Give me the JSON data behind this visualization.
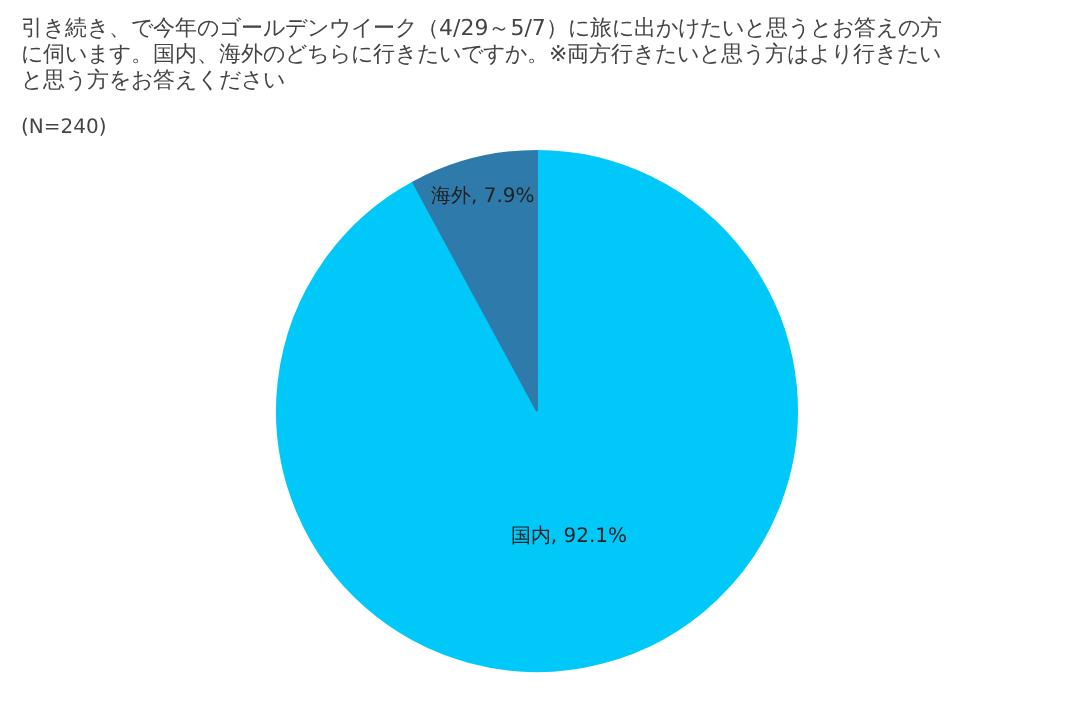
{
  "chart_data": {
    "type": "pie",
    "title": "引き続き、で今年のゴールデンウイーク（4/29～5/7）に旅に出かけたいと思うとお答えの方に伺います。国内、海外のどちらに行きたいですか。※両方行きたいと思う方はより行きたいと思う方をお答えください",
    "subtitle": "(N=240)",
    "categories": [
      "国内",
      "海外"
    ],
    "values": [
      92.1,
      7.9
    ],
    "colors": [
      "#00c8f8",
      "#2e7bab"
    ],
    "value_labels": [
      "92.1%",
      "7.9%"
    ]
  }
}
